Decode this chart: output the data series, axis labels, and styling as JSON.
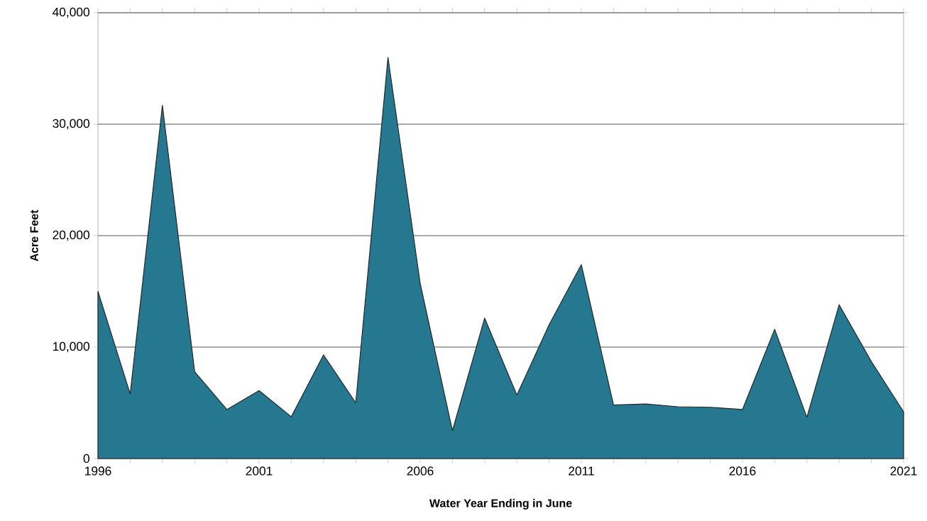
{
  "chart_data": {
    "type": "area",
    "xlabel": "Water Year Ending in June",
    "ylabel": "Acre Feet",
    "x": [
      1996,
      1997,
      1998,
      1999,
      2000,
      2001,
      2002,
      2003,
      2004,
      2005,
      2006,
      2007,
      2008,
      2009,
      2010,
      2011,
      2012,
      2013,
      2014,
      2015,
      2016,
      2017,
      2018,
      2019,
      2020,
      2021
    ],
    "values": [
      15000,
      5800,
      31700,
      7800,
      4400,
      6100,
      3750,
      9300,
      5000,
      36000,
      15700,
      2500,
      12600,
      5700,
      12000,
      17400,
      4800,
      4900,
      4650,
      4600,
      4400,
      11600,
      3700,
      13800,
      8700,
      4200
    ],
    "color": "#25788f",
    "xlim": [
      1996,
      2021
    ],
    "xticks": [
      1996,
      {
        "value": 1997,
        "label": null
      },
      {
        "value": 1998,
        "label": null
      },
      {
        "value": 1999,
        "label": null
      },
      {
        "value": 2000,
        "label": null
      },
      2001,
      {
        "value": 2002,
        "label": null
      },
      {
        "value": 2003,
        "label": null
      },
      {
        "value": 2004,
        "label": null
      },
      {
        "value": 2005,
        "label": null
      },
      2006,
      {
        "value": 2007,
        "label": null
      },
      {
        "value": 2008,
        "label": null
      },
      {
        "value": 2009,
        "label": null
      },
      {
        "value": 2010,
        "label": null
      },
      2011,
      {
        "value": 2012,
        "label": null
      },
      {
        "value": 2013,
        "label": null
      },
      {
        "value": 2014,
        "label": null
      },
      {
        "value": 2015,
        "label": null
      },
      2016,
      {
        "value": 2017,
        "label": null
      },
      {
        "value": 2018,
        "label": null
      },
      {
        "value": 2019,
        "label": null
      },
      {
        "value": 2020,
        "label": null
      },
      2021
    ],
    "ylim": [
      0,
      40000
    ],
    "yticks": [
      0,
      {
        "value": 10000,
        "label": "10,000"
      },
      {
        "value": 20000,
        "label": "20,000"
      },
      {
        "value": 30000,
        "label": "30,000"
      },
      {
        "value": 40000,
        "label": "40,000"
      }
    ],
    "grid": "y"
  }
}
